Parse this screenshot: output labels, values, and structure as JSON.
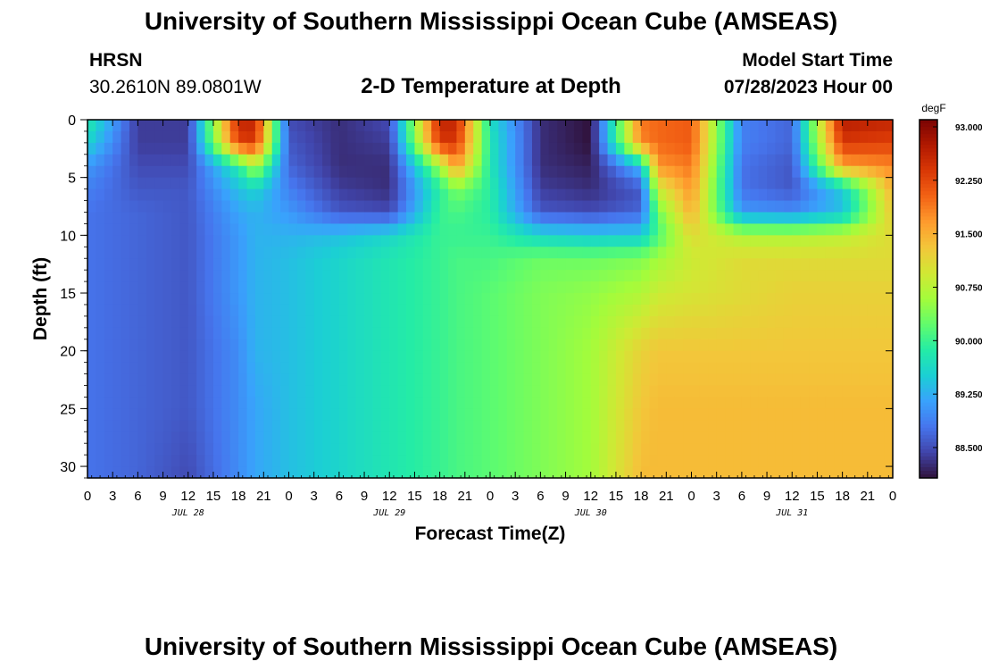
{
  "header": {
    "title": "University of Southern Mississippi Ocean Cube (AMSEAS)",
    "station": "HRSN",
    "coords": "30.2610N  89.0801W",
    "plot_title": "2-D Temperature at Depth",
    "start_label": "Model Start Time",
    "start_value": "07/28/2023 Hour 00"
  },
  "footer": {
    "title": "University of Southern Mississippi Ocean Cube (AMSEAS)"
  },
  "chart_data": {
    "type": "heatmap",
    "title": "2-D Temperature at Depth",
    "xlabel": "Forecast Time(Z)",
    "ylabel": "Depth (ft)",
    "x_units": "hours since model start (07/28/2023 00Z)",
    "xlim": [
      0,
      96
    ],
    "ylim": [
      31,
      0
    ],
    "x_tick_labels": [
      "0",
      "3",
      "6",
      "9",
      "12",
      "15",
      "18",
      "21",
      "0",
      "3",
      "6",
      "9",
      "12",
      "15",
      "18",
      "21",
      "0",
      "3",
      "6",
      "9",
      "12",
      "15",
      "18",
      "21",
      "0",
      "3",
      "6",
      "9",
      "12",
      "15",
      "18",
      "21",
      "0"
    ],
    "day_labels": [
      "JUL 28",
      "JUL 29",
      "JUL 30",
      "JUL 31"
    ],
    "y_ticks": [
      0,
      5,
      10,
      15,
      20,
      25,
      30
    ],
    "colorbar": {
      "unit": "degF",
      "min": 88.0,
      "max": 93.0,
      "ticks": [
        "93.000",
        "92.250",
        "91.500",
        "90.750",
        "90.000",
        "89.250",
        "88.500"
      ]
    },
    "colormap": [
      "#30123b",
      "#4145ab",
      "#4675ed",
      "#39a2fc",
      "#1bcfd4",
      "#24eca6",
      "#61fc6c",
      "#a4fc3b",
      "#d1e834",
      "#f3c63a",
      "#fe9b2d",
      "#f36315",
      "#d93806",
      "#b11901",
      "#7a0403"
    ],
    "depths_ft": [
      0,
      2,
      4,
      6,
      8,
      10,
      12,
      15,
      20,
      25,
      31
    ],
    "times_h": [
      0,
      6,
      12,
      18,
      20,
      24,
      30,
      36,
      42,
      44,
      48,
      54,
      60,
      66,
      68,
      72,
      78,
      84,
      90,
      96
    ],
    "values_degF": [
      [
        89.8,
        88.3,
        88.3,
        92.5,
        92.5,
        88.4,
        88.2,
        88.4,
        92.5,
        92.5,
        89.6,
        88.2,
        88.0,
        91.8,
        91.9,
        92.0,
        88.8,
        88.6,
        92.6,
        92.5
      ],
      [
        89.5,
        88.3,
        88.3,
        92.2,
        92.3,
        88.5,
        88.2,
        88.3,
        92.3,
        92.3,
        89.7,
        88.2,
        88.0,
        91.7,
        91.9,
        92.0,
        88.8,
        88.6,
        92.3,
        92.2
      ],
      [
        89.0,
        88.4,
        88.4,
        89.8,
        90.6,
        88.6,
        88.2,
        88.2,
        90.5,
        91.6,
        89.7,
        88.2,
        88.1,
        89.3,
        91.6,
        91.8,
        88.7,
        88.5,
        91.5,
        91.7
      ],
      [
        88.8,
        88.5,
        88.5,
        89.3,
        89.5,
        88.8,
        88.3,
        88.2,
        89.8,
        90.3,
        89.8,
        88.3,
        88.2,
        88.5,
        90.8,
        91.6,
        88.7,
        88.5,
        89.4,
        91.4
      ],
      [
        88.7,
        88.6,
        88.5,
        89.1,
        89.2,
        89.0,
        88.5,
        88.4,
        89.9,
        90.0,
        89.8,
        88.5,
        88.4,
        88.6,
        90.2,
        91.4,
        89.0,
        88.9,
        89.3,
        91.2
      ],
      [
        88.7,
        88.6,
        88.5,
        89.0,
        89.2,
        89.2,
        89.3,
        89.5,
        89.9,
        89.9,
        89.9,
        89.5,
        89.4,
        89.4,
        90.0,
        91.0,
        90.6,
        90.6,
        90.7,
        91.0
      ],
      [
        88.7,
        88.6,
        88.5,
        89.0,
        89.2,
        89.3,
        89.5,
        89.7,
        89.9,
        90.0,
        90.0,
        90.2,
        90.2,
        90.3,
        90.5,
        90.8,
        91.0,
        91.0,
        91.0,
        91.0
      ],
      [
        88.7,
        88.6,
        88.5,
        89.0,
        89.2,
        89.3,
        89.5,
        89.7,
        89.9,
        90.0,
        90.1,
        90.3,
        90.4,
        90.6,
        90.8,
        90.9,
        91.0,
        91.1,
        91.1,
        91.1
      ],
      [
        88.7,
        88.6,
        88.5,
        88.9,
        89.2,
        89.3,
        89.5,
        89.7,
        89.9,
        90.0,
        90.1,
        90.3,
        90.5,
        91.1,
        91.2,
        91.2,
        91.2,
        91.2,
        91.2,
        91.2
      ],
      [
        88.7,
        88.6,
        88.5,
        88.9,
        89.1,
        89.3,
        89.5,
        89.7,
        89.9,
        90.0,
        90.1,
        90.3,
        90.5,
        91.2,
        91.3,
        91.3,
        91.3,
        91.3,
        91.3,
        91.3
      ],
      [
        88.7,
        88.6,
        88.4,
        88.9,
        89.1,
        89.3,
        89.5,
        89.7,
        89.9,
        90.0,
        90.1,
        90.3,
        90.5,
        91.3,
        91.3,
        91.3,
        91.3,
        91.3,
        91.3,
        91.3
      ]
    ]
  }
}
